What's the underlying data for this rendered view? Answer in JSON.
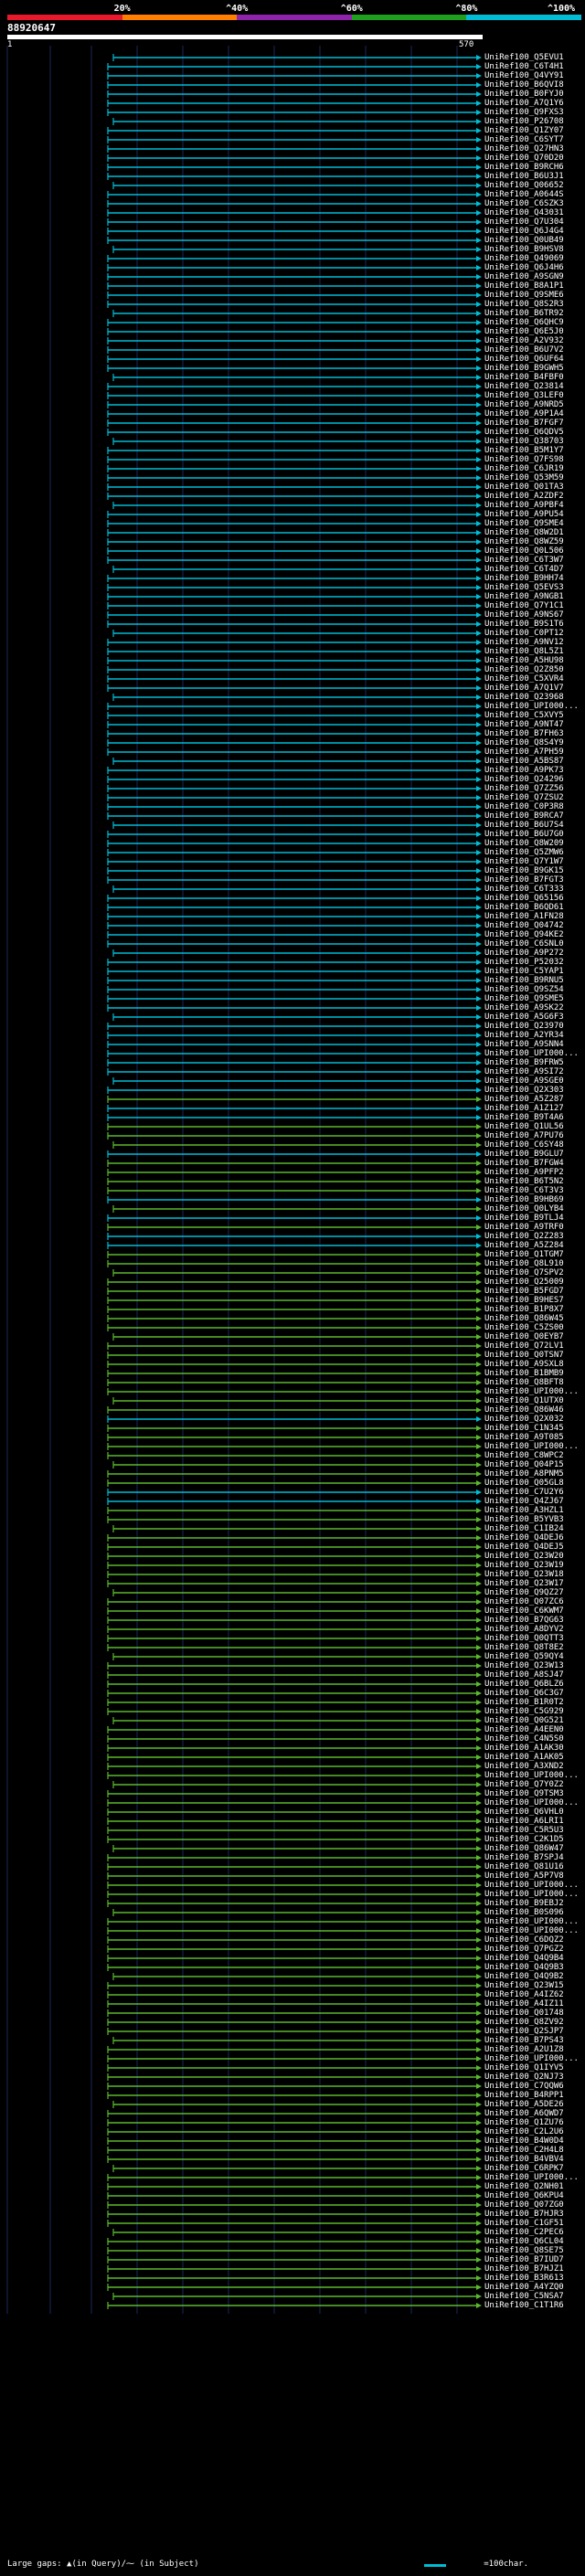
{
  "title": "88920647",
  "scale": {
    "labels": [
      "20%",
      "^40%",
      "^60%",
      "^80%",
      "^100%"
    ],
    "colors": [
      "#e8192c",
      "#ff7f00",
      "#8e24aa",
      "#1f9e1f",
      "#00bcd4"
    ]
  },
  "ruler": {
    "start": "1",
    "end": "570"
  },
  "colors": {
    "high": "#00bcd4",
    "mid": "#5ab82e",
    "background": "#000000",
    "grid": "#1a2a5a"
  },
  "hits": [
    {
      "label": "UniRef100_Q5EVU1",
      "band": "high"
    },
    {
      "label": "UniRef100_C6T4H1",
      "band": "high"
    },
    {
      "label": "UniRef100_Q4VY91",
      "band": "high"
    },
    {
      "label": "UniRef100_B6QVI8",
      "band": "high"
    },
    {
      "label": "UniRef100_B0FYJ0",
      "band": "high"
    },
    {
      "label": "UniRef100_A7Q1Y6",
      "band": "high"
    },
    {
      "label": "UniRef100_Q9FXS3",
      "band": "high"
    },
    {
      "label": "UniRef100_P26708",
      "band": "high"
    },
    {
      "label": "UniRef100_Q1ZY07",
      "band": "high"
    },
    {
      "label": "UniRef100_C6SYT7",
      "band": "high"
    },
    {
      "label": "UniRef100_Q27HN3",
      "band": "high"
    },
    {
      "label": "UniRef100_Q70D20",
      "band": "high"
    },
    {
      "label": "UniRef100_B9RCH6",
      "band": "high"
    },
    {
      "label": "UniRef100_B6U3J1",
      "band": "high"
    },
    {
      "label": "UniRef100_Q06652",
      "band": "high"
    },
    {
      "label": "UniRef100_A0644S",
      "band": "high"
    },
    {
      "label": "UniRef100_C6SZK3",
      "band": "high"
    },
    {
      "label": "UniRef100_Q43031",
      "band": "high"
    },
    {
      "label": "UniRef100_Q7U304",
      "band": "high"
    },
    {
      "label": "UniRef100_Q6J4G4",
      "band": "high"
    },
    {
      "label": "UniRef100_Q0UB49",
      "band": "high"
    },
    {
      "label": "UniRef100_B9HSV8",
      "band": "high"
    },
    {
      "label": "UniRef100_Q49069",
      "band": "high"
    },
    {
      "label": "UniRef100_Q6J4H6",
      "band": "high"
    },
    {
      "label": "UniRef100_A9SGN9",
      "band": "high"
    },
    {
      "label": "UniRef100_B8A1P1",
      "band": "high"
    },
    {
      "label": "UniRef100_Q9SME6",
      "band": "high"
    },
    {
      "label": "UniRef100_Q8S2R3",
      "band": "high"
    },
    {
      "label": "UniRef100_B6TR92",
      "band": "high"
    },
    {
      "label": "UniRef100_Q6QHC9",
      "band": "high"
    },
    {
      "label": "UniRef100_Q6E5J0",
      "band": "high"
    },
    {
      "label": "UniRef100_A2V932",
      "band": "high"
    },
    {
      "label": "UniRef100_B6U7V2",
      "band": "high"
    },
    {
      "label": "UniRef100_Q6UF64",
      "band": "high"
    },
    {
      "label": "UniRef100_B9GWH5",
      "band": "high"
    },
    {
      "label": "UniRef100_B4FBF0",
      "band": "high"
    },
    {
      "label": "UniRef100_Q23814",
      "band": "high"
    },
    {
      "label": "UniRef100_Q3LEF0",
      "band": "high"
    },
    {
      "label": "UniRef100_A9NRD5",
      "band": "high"
    },
    {
      "label": "UniRef100_A9P1A4",
      "band": "high"
    },
    {
      "label": "UniRef100_B7FGF7",
      "band": "high"
    },
    {
      "label": "UniRef100_Q6QDV5",
      "band": "high"
    },
    {
      "label": "UniRef100_Q38703",
      "band": "high"
    },
    {
      "label": "UniRef100_B5M1Y7",
      "band": "high"
    },
    {
      "label": "UniRef100_Q7FS98",
      "band": "high"
    },
    {
      "label": "UniRef100_C6JR19",
      "band": "high"
    },
    {
      "label": "UniRef100_Q53M59",
      "band": "high"
    },
    {
      "label": "UniRef100_Q01TA3",
      "band": "high"
    },
    {
      "label": "UniRef100_A2ZDF2",
      "band": "high"
    },
    {
      "label": "UniRef100_A9PBF4",
      "band": "high"
    },
    {
      "label": "UniRef100_A9PU54",
      "band": "high"
    },
    {
      "label": "UniRef100_Q9SME4",
      "band": "high"
    },
    {
      "label": "UniRef100_Q8W2D1",
      "band": "high"
    },
    {
      "label": "UniRef100_Q8WZ59",
      "band": "high"
    },
    {
      "label": "UniRef100_Q0L506",
      "band": "high"
    },
    {
      "label": "UniRef100_C6T3W7",
      "band": "high"
    },
    {
      "label": "UniRef100_C6T4D7",
      "band": "high"
    },
    {
      "label": "UniRef100_B9HH74",
      "band": "high"
    },
    {
      "label": "UniRef100_Q5EVS3",
      "band": "high"
    },
    {
      "label": "UniRef100_A9NGB1",
      "band": "high"
    },
    {
      "label": "UniRef100_Q7Y1C1",
      "band": "high"
    },
    {
      "label": "UniRef100_A9NS67",
      "band": "high"
    },
    {
      "label": "UniRef100_B9S1T6",
      "band": "high"
    },
    {
      "label": "UniRef100_C0PT12",
      "band": "high"
    },
    {
      "label": "UniRef100_A9NV12",
      "band": "high"
    },
    {
      "label": "UniRef100_Q8L5Z1",
      "band": "high"
    },
    {
      "label": "UniRef100_A5HU98",
      "band": "high"
    },
    {
      "label": "UniRef100_Q2Z850",
      "band": "high"
    },
    {
      "label": "UniRef100_C5XVR4",
      "band": "high"
    },
    {
      "label": "UniRef100_A7Q1V7",
      "band": "high"
    },
    {
      "label": "UniRef100_Q23968",
      "band": "high"
    },
    {
      "label": "UniRef100_UPI000...",
      "band": "high"
    },
    {
      "label": "UniRef100_C5XVY5",
      "band": "high"
    },
    {
      "label": "UniRef100_A9NT47",
      "band": "high"
    },
    {
      "label": "UniRef100_B7FH63",
      "band": "high"
    },
    {
      "label": "UniRef100_Q8S4Y9",
      "band": "high"
    },
    {
      "label": "UniRef100_A7PH59",
      "band": "high"
    },
    {
      "label": "UniRef100_A5BS87",
      "band": "high"
    },
    {
      "label": "UniRef100_A9PK73",
      "band": "high"
    },
    {
      "label": "UniRef100_Q24296",
      "band": "high"
    },
    {
      "label": "UniRef100_Q7ZZ56",
      "band": "high"
    },
    {
      "label": "UniRef100_Q7ZSU2",
      "band": "high"
    },
    {
      "label": "UniRef100_C0P3R8",
      "band": "high"
    },
    {
      "label": "UniRef100_B9RCA7",
      "band": "high"
    },
    {
      "label": "UniRef100_B6U7S4",
      "band": "high"
    },
    {
      "label": "UniRef100_B6U7G0",
      "band": "high"
    },
    {
      "label": "UniRef100_Q8W209",
      "band": "high"
    },
    {
      "label": "UniRef100_Q5ZMW6",
      "band": "high"
    },
    {
      "label": "UniRef100_Q7Y1W7",
      "band": "high"
    },
    {
      "label": "UniRef100_B9GK15",
      "band": "high"
    },
    {
      "label": "UniRef100_B7FGT3",
      "band": "high"
    },
    {
      "label": "UniRef100_C6T333",
      "band": "high"
    },
    {
      "label": "UniRef100_Q65156",
      "band": "high"
    },
    {
      "label": "UniRef100_B6QD61",
      "band": "high"
    },
    {
      "label": "UniRef100_A1FN28",
      "band": "high"
    },
    {
      "label": "UniRef100_Q04742",
      "band": "high"
    },
    {
      "label": "UniRef100_Q94KE2",
      "band": "high"
    },
    {
      "label": "UniRef100_C6SNL0",
      "band": "high"
    },
    {
      "label": "UniRef100_A9P272",
      "band": "high"
    },
    {
      "label": "UniRef100_P52032",
      "band": "high"
    },
    {
      "label": "UniRef100_C5YAP1",
      "band": "high"
    },
    {
      "label": "UniRef100_B9RNU5",
      "band": "high"
    },
    {
      "label": "UniRef100_Q9SZ54",
      "band": "high"
    },
    {
      "label": "UniRef100_Q9SME5",
      "band": "high"
    },
    {
      "label": "UniRef100_A9SK22",
      "band": "high"
    },
    {
      "label": "UniRef100_A5G6F3",
      "band": "high"
    },
    {
      "label": "UniRef100_Q23970",
      "band": "high"
    },
    {
      "label": "UniRef100_A2YR34",
      "band": "high"
    },
    {
      "label": "UniRef100_A9SNN4",
      "band": "high"
    },
    {
      "label": "UniRef100_UPI000...",
      "band": "high"
    },
    {
      "label": "UniRef100_B9FRW5",
      "band": "high"
    },
    {
      "label": "UniRef100_A9SI72",
      "band": "high"
    },
    {
      "label": "UniRef100_A9SGE0",
      "band": "high"
    },
    {
      "label": "UniRef100_Q2X303",
      "band": "high"
    },
    {
      "label": "UniRef100_A5Z287",
      "band": "mid"
    },
    {
      "label": "UniRef100_A1Z127",
      "band": "high"
    },
    {
      "label": "UniRef100_B9T4A6",
      "band": "high"
    },
    {
      "label": "UniRef100_Q1UL56",
      "band": "mid"
    },
    {
      "label": "UniRef100_A7PU76",
      "band": "mid"
    },
    {
      "label": "UniRef100_C6SY48",
      "band": "mid"
    },
    {
      "label": "UniRef100_B9GLU7",
      "band": "high"
    },
    {
      "label": "UniRef100_B7FGW4",
      "band": "mid"
    },
    {
      "label": "UniRef100_A9PFP2",
      "band": "mid"
    },
    {
      "label": "UniRef100_B6T5N2",
      "band": "mid"
    },
    {
      "label": "UniRef100_C6T3V3",
      "band": "mid"
    },
    {
      "label": "UniRef100_B9HB69",
      "band": "high"
    },
    {
      "label": "UniRef100_Q0LYB4",
      "band": "mid"
    },
    {
      "label": "UniRef100_B9TLJ4",
      "band": "high"
    },
    {
      "label": "UniRef100_A9TRF0",
      "band": "mid"
    },
    {
      "label": "UniRef100_Q2Z283",
      "band": "high"
    },
    {
      "label": "UniRef100_A5Z284",
      "band": "high"
    },
    {
      "label": "UniRef100_Q1TGM7",
      "band": "mid"
    },
    {
      "label": "UniRef100_Q8L910",
      "band": "mid"
    },
    {
      "label": "UniRef100_Q7SPV2",
      "band": "mid"
    },
    {
      "label": "UniRef100_Q25009",
      "band": "mid"
    },
    {
      "label": "UniRef100_B5FGD7",
      "band": "mid"
    },
    {
      "label": "UniRef100_B9HES7",
      "band": "mid"
    },
    {
      "label": "UniRef100_B1P8X7",
      "band": "mid"
    },
    {
      "label": "UniRef100_Q86W45",
      "band": "mid"
    },
    {
      "label": "UniRef100_C5ZS00",
      "band": "mid"
    },
    {
      "label": "UniRef100_Q0EYB7",
      "band": "mid"
    },
    {
      "label": "UniRef100_Q72LV1",
      "band": "mid"
    },
    {
      "label": "UniRef100_Q0TSN7",
      "band": "mid"
    },
    {
      "label": "UniRef100_A9SXL8",
      "band": "mid"
    },
    {
      "label": "UniRef100_B1BMB9",
      "band": "mid"
    },
    {
      "label": "UniRef100_Q8BFT8",
      "band": "mid"
    },
    {
      "label": "UniRef100_UPI000...",
      "band": "mid"
    },
    {
      "label": "UniRef100_Q1UTX0",
      "band": "mid"
    },
    {
      "label": "UniRef100_Q86W46",
      "band": "mid"
    },
    {
      "label": "UniRef100_Q2X032",
      "band": "high"
    },
    {
      "label": "UniRef100_C1N345",
      "band": "mid"
    },
    {
      "label": "UniRef100_A9T085",
      "band": "mid"
    },
    {
      "label": "UniRef100_UPI000...",
      "band": "mid"
    },
    {
      "label": "UniRef100_C8WPC2",
      "band": "mid"
    },
    {
      "label": "UniRef100_Q04P15",
      "band": "mid"
    },
    {
      "label": "UniRef100_A8PNM5",
      "band": "mid"
    },
    {
      "label": "UniRef100_Q05GL8",
      "band": "mid"
    },
    {
      "label": "UniRef100_C7U2Y6",
      "band": "high"
    },
    {
      "label": "UniRef100_Q4ZJ67",
      "band": "high"
    },
    {
      "label": "UniRef100_A3HZL1",
      "band": "mid"
    },
    {
      "label": "UniRef100_B5YVB3",
      "band": "mid"
    },
    {
      "label": "UniRef100_C1IB24",
      "band": "mid"
    },
    {
      "label": "UniRef100_Q4DEJ6",
      "band": "mid"
    },
    {
      "label": "UniRef100_Q4DEJ5",
      "band": "mid"
    },
    {
      "label": "UniRef100_Q23W20",
      "band": "mid"
    },
    {
      "label": "UniRef100_Q23W19",
      "band": "mid"
    },
    {
      "label": "UniRef100_Q23W18",
      "band": "mid"
    },
    {
      "label": "UniRef100_Q23W17",
      "band": "mid"
    },
    {
      "label": "UniRef100_Q9QZ27",
      "band": "mid"
    },
    {
      "label": "UniRef100_Q07ZC6",
      "band": "mid"
    },
    {
      "label": "UniRef100_C6KWM7",
      "band": "mid"
    },
    {
      "label": "UniRef100_B7QG63",
      "band": "mid"
    },
    {
      "label": "UniRef100_A8DYV2",
      "band": "mid"
    },
    {
      "label": "UniRef100_Q0QTT3",
      "band": "mid"
    },
    {
      "label": "UniRef100_Q8T8E2",
      "band": "mid"
    },
    {
      "label": "UniRef100_Q59QY4",
      "band": "mid"
    },
    {
      "label": "UniRef100_Q23W13",
      "band": "mid"
    },
    {
      "label": "UniRef100_A8SJ47",
      "band": "mid"
    },
    {
      "label": "UniRef100_Q6BLZ6",
      "band": "mid"
    },
    {
      "label": "UniRef100_Q6C3G7",
      "band": "mid"
    },
    {
      "label": "UniRef100_B1R0T2",
      "band": "mid"
    },
    {
      "label": "UniRef100_C5G929",
      "band": "mid"
    },
    {
      "label": "UniRef100_Q0G521",
      "band": "mid"
    },
    {
      "label": "UniRef100_A4EEN0",
      "band": "mid"
    },
    {
      "label": "UniRef100_C4N5S0",
      "band": "mid"
    },
    {
      "label": "UniRef100_A1AK30",
      "band": "mid"
    },
    {
      "label": "UniRef100_A1AK05",
      "band": "mid"
    },
    {
      "label": "UniRef100_A3XND2",
      "band": "mid"
    },
    {
      "label": "UniRef100_UPI000...",
      "band": "mid"
    },
    {
      "label": "UniRef100_Q7Y0Z2",
      "band": "mid"
    },
    {
      "label": "UniRef100_Q9TSM3",
      "band": "mid"
    },
    {
      "label": "UniRef100_UPI000...",
      "band": "mid"
    },
    {
      "label": "UniRef100_Q6VHL0",
      "band": "mid"
    },
    {
      "label": "UniRef100_A6LRI1",
      "band": "mid"
    },
    {
      "label": "UniRef100_C5R5U3",
      "band": "mid"
    },
    {
      "label": "UniRef100_C2K1D5",
      "band": "mid"
    },
    {
      "label": "UniRef100_Q86W47",
      "band": "mid"
    },
    {
      "label": "UniRef100_B7SPJ4",
      "band": "mid"
    },
    {
      "label": "UniRef100_Q81U16",
      "band": "mid"
    },
    {
      "label": "UniRef100_A5P7V8",
      "band": "mid"
    },
    {
      "label": "UniRef100_UPI000...",
      "band": "mid"
    },
    {
      "label": "UniRef100_UPI000...",
      "band": "mid"
    },
    {
      "label": "UniRef100_B9EBJ2",
      "band": "mid"
    },
    {
      "label": "UniRef100_B0S096",
      "band": "mid"
    },
    {
      "label": "UniRef100_UPI000...",
      "band": "mid"
    },
    {
      "label": "UniRef100_UPI000...",
      "band": "mid"
    },
    {
      "label": "UniRef100_C6DQZ2",
      "band": "mid"
    },
    {
      "label": "UniRef100_Q7PGZ2",
      "band": "mid"
    },
    {
      "label": "UniRef100_Q4Q9B4",
      "band": "mid"
    },
    {
      "label": "UniRef100_Q4Q9B3",
      "band": "mid"
    },
    {
      "label": "UniRef100_Q4Q9B2",
      "band": "mid"
    },
    {
      "label": "UniRef100_Q23W15",
      "band": "mid"
    },
    {
      "label": "UniRef100_A4IZ62",
      "band": "mid"
    },
    {
      "label": "UniRef100_A4IZ11",
      "band": "mid"
    },
    {
      "label": "UniRef100_Q01748",
      "band": "mid"
    },
    {
      "label": "UniRef100_Q8ZV92",
      "band": "mid"
    },
    {
      "label": "UniRef100_Q2SJP7",
      "band": "mid"
    },
    {
      "label": "UniRef100_B7PS43",
      "band": "mid"
    },
    {
      "label": "UniRef100_A2U1Z8",
      "band": "mid"
    },
    {
      "label": "UniRef100_UPI000...",
      "band": "mid"
    },
    {
      "label": "UniRef100_Q1IYV5",
      "band": "mid"
    },
    {
      "label": "UniRef100_Q2NJ73",
      "band": "mid"
    },
    {
      "label": "UniRef100_C7QQW6",
      "band": "mid"
    },
    {
      "label": "UniRef100_B4RPP1",
      "band": "mid"
    },
    {
      "label": "UniRef100_A5DE26",
      "band": "mid"
    },
    {
      "label": "UniRef100_A6QWD7",
      "band": "mid"
    },
    {
      "label": "UniRef100_Q1ZU76",
      "band": "mid"
    },
    {
      "label": "UniRef100_C2L2U6",
      "band": "mid"
    },
    {
      "label": "UniRef100_B4W0D4",
      "band": "mid"
    },
    {
      "label": "UniRef100_C2H4L8",
      "band": "mid"
    },
    {
      "label": "UniRef100_B4VBV4",
      "band": "mid"
    },
    {
      "label": "UniRef100_C6RPK7",
      "band": "mid"
    },
    {
      "label": "UniRef100_UPI000...",
      "band": "mid"
    },
    {
      "label": "UniRef100_Q2NH01",
      "band": "mid"
    },
    {
      "label": "UniRef100_Q6KPU4",
      "band": "mid"
    },
    {
      "label": "UniRef100_Q07ZG0",
      "band": "mid"
    },
    {
      "label": "UniRef100_B7HJR3",
      "band": "mid"
    },
    {
      "label": "UniRef100_C1GF51",
      "band": "mid"
    },
    {
      "label": "UniRef100_C2PEC6",
      "band": "mid"
    },
    {
      "label": "UniRef100_Q6CL04",
      "band": "mid"
    },
    {
      "label": "UniRef100_Q8SE75",
      "band": "mid"
    },
    {
      "label": "UniRef100_B7IUD7",
      "band": "mid"
    },
    {
      "label": "UniRef100_B7HJZ1",
      "band": "mid"
    },
    {
      "label": "UniRef100_B3R613",
      "band": "mid"
    },
    {
      "label": "UniRef100_A4YZQ0",
      "band": "mid"
    },
    {
      "label": "UniRef100_C5NSA7",
      "band": "mid"
    },
    {
      "label": "UniRef100_C1T1R6",
      "band": "mid"
    }
  ],
  "legend": {
    "left": "Large gaps: ▲(in Query)/⁓ (in Subject)",
    "right": "=100char."
  }
}
